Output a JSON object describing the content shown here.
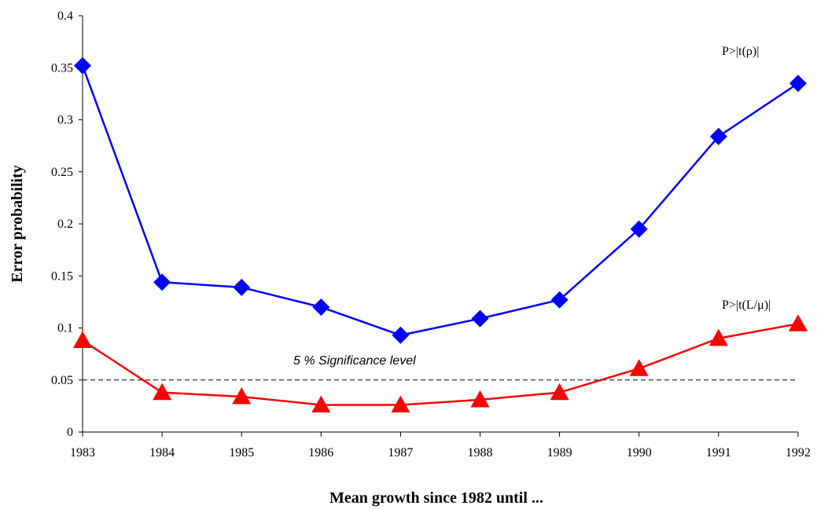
{
  "chart_data": {
    "type": "line",
    "title": "",
    "xlabel": "Mean growth since 1982 until ...",
    "ylabel": "Error probability",
    "x": [
      "1983",
      "1984",
      "1985",
      "1986",
      "1987",
      "1988",
      "1989",
      "1990",
      "1991",
      "1992"
    ],
    "ylim": [
      0,
      0.4
    ],
    "yticks": [
      "0",
      "0.05",
      "0.1",
      "0.15",
      "0.2",
      "0.25",
      "0.3",
      "0.35",
      "0.4"
    ],
    "grid": false,
    "series": [
      {
        "name": "P>|t(ρ)|",
        "color": "#0000ff",
        "marker": "diamond",
        "values": [
          0.352,
          0.144,
          0.139,
          0.12,
          0.093,
          0.109,
          0.127,
          0.195,
          0.284,
          0.335
        ]
      },
      {
        "name": "P>|t(L/μ)|",
        "color": "#ff0000",
        "marker": "triangle",
        "values": [
          0.088,
          0.038,
          0.034,
          0.026,
          0.026,
          0.031,
          0.038,
          0.061,
          0.09,
          0.104
        ]
      }
    ],
    "reference_line": {
      "value": 0.05,
      "label": "5 % Significance level",
      "style": "dashed"
    }
  }
}
